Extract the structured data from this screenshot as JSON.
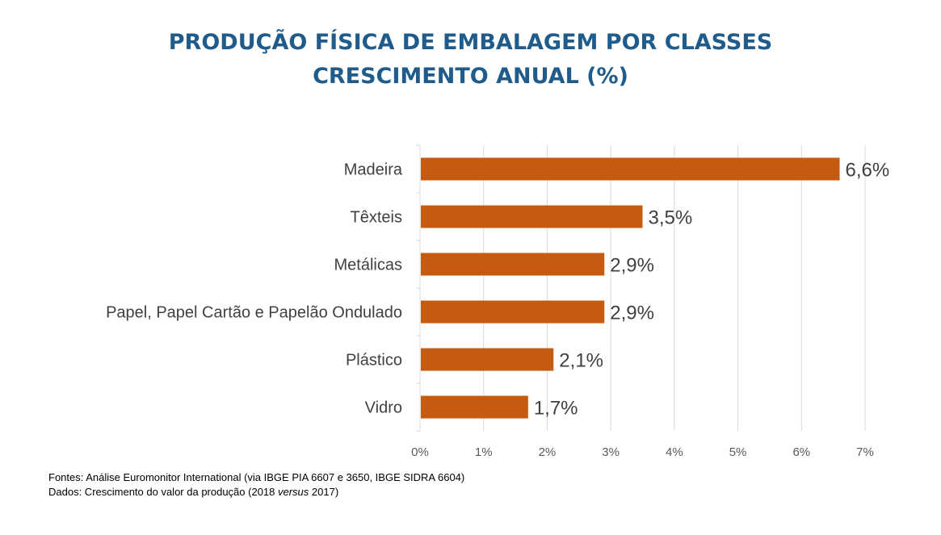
{
  "title": {
    "line1": "PRODUÇÃO FÍSICA DE EMBALAGEM POR CLASSES",
    "line2": "CRESCIMENTO ANUAL (%)"
  },
  "colors": {
    "title": "#1f5c8b",
    "bar": "#c55a11",
    "grid": "#d9d9d9",
    "axis_text": "#595959",
    "label_text": "#404040"
  },
  "chart_data": {
    "type": "bar",
    "orientation": "horizontal",
    "categories": [
      "Madeira",
      "Têxteis",
      "Metálicas",
      "Papel, Papel Cartão e Papelão Ondulado",
      "Plástico",
      "Vidro"
    ],
    "values": [
      6.6,
      3.5,
      2.9,
      2.9,
      2.1,
      1.7
    ],
    "value_labels": [
      "6,6%",
      "3,5%",
      "2,9%",
      "2,9%",
      "2,1%",
      "1,7%"
    ],
    "xlim": [
      0,
      7
    ],
    "x_ticks": [
      "0%",
      "1%",
      "2%",
      "3%",
      "4%",
      "5%",
      "6%",
      "7%"
    ],
    "grid": true,
    "legend": "none"
  },
  "footnote": {
    "line1": "Fontes: Análise Euromonitor International  (via IBGE PIA 6607 e 3650, IBGE SIDRA 6604)",
    "line2_prefix": "Dados: Crescimento do valor da produção (2018 ",
    "line2_italic": "versus",
    "line2_suffix": " 2017)"
  }
}
